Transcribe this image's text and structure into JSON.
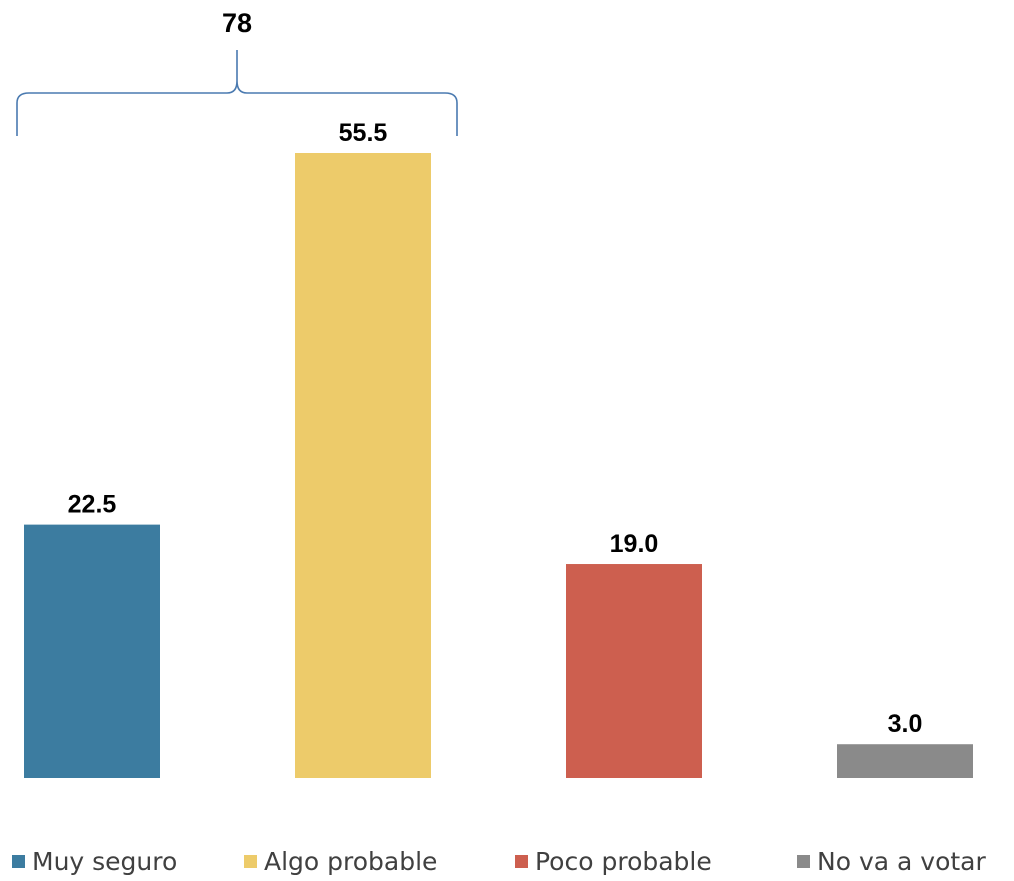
{
  "chart_data": {
    "type": "bar",
    "categories": [
      "Muy seguro",
      "Algo probable",
      "Poco probable",
      "No va a votar"
    ],
    "values": [
      22.5,
      55.5,
      19.0,
      3.0
    ],
    "value_labels": [
      "22.5",
      "55.5",
      "19.0",
      "3.0"
    ],
    "colors": [
      "#3c7ca0",
      "#edcb6a",
      "#cd5f4f",
      "#8a8a8a"
    ],
    "ylim": [
      0,
      55.5
    ],
    "grid": false,
    "legend_position": "bottom",
    "annotation": {
      "label": "78",
      "spans_categories": [
        "Muy seguro",
        "Algo probable"
      ],
      "color": "#4a7ab0"
    }
  }
}
